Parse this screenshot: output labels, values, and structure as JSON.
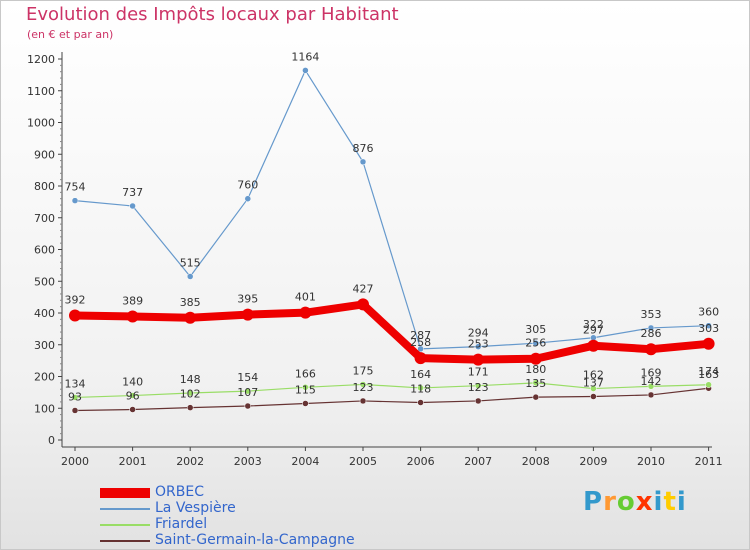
{
  "title": "Evolution des Impôts locaux par Habitant",
  "subtitle": "(en € et par an)",
  "logo": {
    "text": "Proxiti",
    "letter_colors": [
      "#3399cc",
      "#ff9933",
      "#66cc33",
      "#ff3300",
      "#3399cc",
      "#ffcc00",
      "#3399cc"
    ]
  },
  "chart_data": {
    "type": "line",
    "categories": [
      "2000",
      "2001",
      "2002",
      "2003",
      "2004",
      "2005",
      "2006",
      "2007",
      "2008",
      "2009",
      "2010",
      "2011"
    ],
    "ylim": [
      0,
      1200
    ],
    "yticks": [
      "0",
      "100",
      "200",
      "300",
      "400",
      "500",
      "600",
      "700",
      "800",
      "900",
      "1000",
      "1100",
      "1200"
    ],
    "grid": false,
    "legend_position": "bottom-left",
    "series": [
      {
        "name": "ORBEC",
        "color": "#ee0000",
        "values": [
          392,
          389,
          385,
          395,
          401,
          427,
          258,
          253,
          256,
          297,
          286,
          303
        ],
        "labels": [
          "392",
          "389",
          "385",
          "395",
          "401",
          "427",
          "258",
          "253",
          "256",
          "297",
          "286",
          "303"
        ]
      },
      {
        "name": "La Vespière",
        "color": "#6699cc",
        "values": [
          754,
          737,
          515,
          760,
          1164,
          876,
          287,
          294,
          305,
          322,
          353,
          360
        ],
        "labels": [
          "754",
          "737",
          "515",
          "760",
          "1164",
          "876",
          "287",
          "294",
          "305",
          "322",
          "353",
          "360"
        ]
      },
      {
        "name": "Friardel",
        "color": "#99dd66",
        "values": [
          134,
          140,
          148,
          154,
          166,
          175,
          164,
          171,
          180,
          162,
          169,
          174
        ],
        "labels": [
          "134",
          "140",
          "148",
          "154",
          "166",
          "175",
          "164",
          "171",
          "180",
          "162",
          "169",
          "174"
        ]
      },
      {
        "name": "Saint-Germain-la-Campagne",
        "color": "#663333",
        "values": [
          93,
          96,
          102,
          107,
          115,
          123,
          118,
          123,
          135,
          137,
          142,
          163
        ],
        "labels": [
          "93",
          "96",
          "102",
          "107",
          "115",
          "123",
          "118",
          "123",
          "135",
          "137",
          "142",
          "163"
        ]
      }
    ]
  }
}
